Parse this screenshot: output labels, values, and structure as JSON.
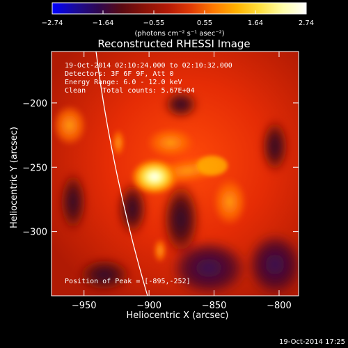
{
  "colorbar": {
    "ticks": [
      "-2.74",
      "-1.64",
      "-0.55",
      "0.55",
      "1.64",
      "2.74"
    ],
    "unit_label": "(photons cm⁻² s⁻¹ asec⁻²)",
    "colors": [
      "#0000ff",
      "#1a0a9a",
      "#2e0750",
      "#5a0a12",
      "#8a1207",
      "#b41a06",
      "#e03a05",
      "#ff7a00",
      "#ffb300",
      "#ffe040",
      "#ffffaa",
      "#ffffff"
    ]
  },
  "image": {
    "title": "Reconstructed RHESSI Image",
    "info_lines": [
      "19-Oct-2014 02:10:24.000 to 02:10:32.000",
      "Detectors: 3F 6F 9F, Att 0",
      "Energy Range: 6.0 - 12.0 keV",
      "Clean    Total counts: 5.67E+04"
    ],
    "peak_label": "Position of Peak = [-895,-252]",
    "peak": {
      "x": -895,
      "y": -252
    },
    "x_axis": {
      "label": "Heliocentric X (arcsec)",
      "range": [
        -975,
        -785
      ],
      "ticks": [
        -950,
        -900,
        -850,
        -800
      ]
    },
    "y_axis": {
      "label": "Heliocentric Y (arcsec)",
      "range": [
        -350,
        -160
      ],
      "ticks": [
        -200,
        -250,
        -300
      ]
    }
  },
  "footer": {
    "timestamp": "19-Oct-2014 17:25"
  }
}
